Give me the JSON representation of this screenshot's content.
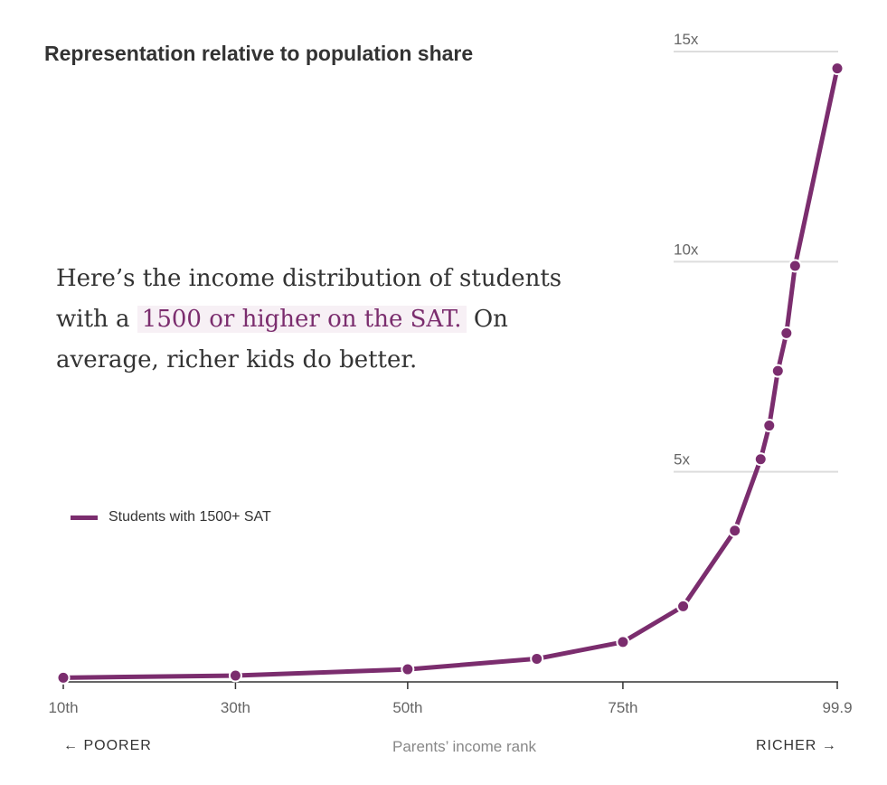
{
  "chart_data": {
    "type": "line",
    "title": "Representation relative to population share",
    "annotation": {
      "before": "Here’s the income distribution of students with a",
      "highlight": "1500 or higher on the SAT.",
      "after": "On average, richer kids do better."
    },
    "series": [
      {
        "name": "Students with 1500+ SAT",
        "color": "#7b2d6e",
        "x": [
          10,
          30,
          50,
          65,
          75,
          82,
          88,
          91,
          92,
          93,
          94,
          95,
          99.9
        ],
        "y": [
          0.1,
          0.15,
          0.3,
          0.55,
          0.95,
          1.8,
          3.6,
          5.3,
          6.1,
          7.4,
          8.3,
          9.9,
          14.6
        ]
      }
    ],
    "y_ticks": [
      {
        "value": 5,
        "label": "5x"
      },
      {
        "value": 10,
        "label": "10x"
      },
      {
        "value": 15,
        "label": "15x"
      }
    ],
    "x_ticks": [
      {
        "value": 10,
        "label": "10th"
      },
      {
        "value": 30,
        "label": "30th"
      },
      {
        "value": 50,
        "label": "50th"
      },
      {
        "value": 75,
        "label": "75th"
      },
      {
        "value": 99.9,
        "label": "99.9"
      }
    ],
    "xlim": [
      10,
      99.9
    ],
    "ylim": [
      0,
      15
    ],
    "xlabel": "Parents’ income rank",
    "x_left_label": "← POORER",
    "x_right_label": "RICHER →",
    "legend_position": "left"
  }
}
